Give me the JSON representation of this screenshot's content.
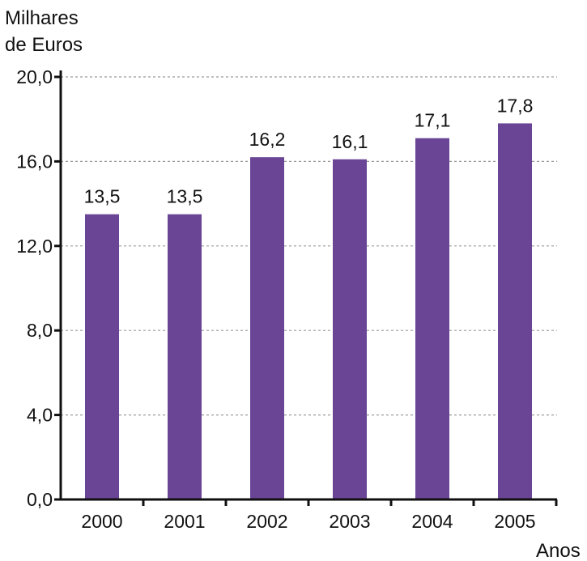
{
  "chart_data": {
    "type": "bar",
    "ylabel": [
      "Milhares",
      "de Euros"
    ],
    "xlabel": "Anos",
    "categories": [
      "2000",
      "2001",
      "2002",
      "2003",
      "2004",
      "2005"
    ],
    "values": [
      13.5,
      13.5,
      16.2,
      16.1,
      17.1,
      17.8
    ],
    "value_labels": [
      "13,5",
      "13,5",
      "16,2",
      "16,1",
      "17,1",
      "17,8"
    ],
    "yticks": [
      0,
      4,
      8,
      12,
      16,
      20
    ],
    "ytick_labels": [
      "0,0",
      "4,0",
      "8,0",
      "12,0",
      "16,0",
      "20,0"
    ],
    "ylim": [
      0,
      20
    ],
    "grid": true,
    "colors": {
      "bar": "#6a4596",
      "axis": "#111111",
      "grid": "#9a9a9a"
    }
  }
}
